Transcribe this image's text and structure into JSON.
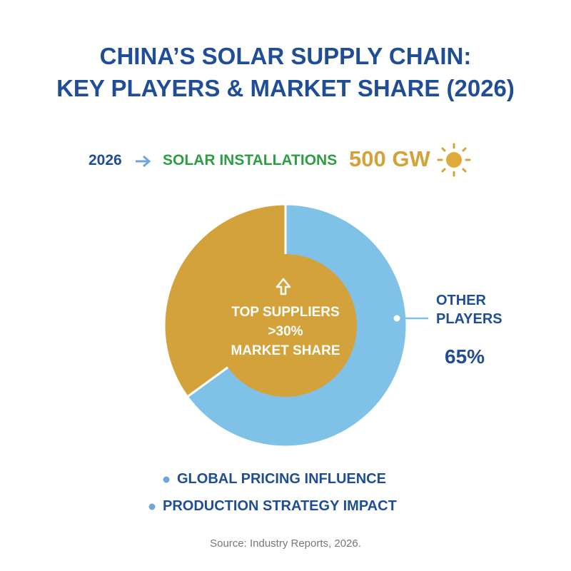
{
  "chart_data": {
    "type": "pie",
    "title": [
      "CHINA’S SOLAR SUPPLY CHAIN:",
      "KEY PLAYERS & MARKET SHARE (2026)"
    ],
    "headline": {
      "year": "2026",
      "label": "SOLAR INSTALLATIONS",
      "value": "500 GW"
    },
    "categories": [
      null,
      "OTHER PLAYERS"
    ],
    "values": [
      35,
      65
    ],
    "value_labels": [
      null,
      "65%"
    ],
    "colors": [
      "#d4a23a",
      "#80c1e7"
    ],
    "center_text": [
      "TOP SUPPLIERS",
      ">30%",
      "MARKET SHARE"
    ],
    "bullets": [
      "GLOBAL PRICING INFLUENCE",
      "PRODUCTION STRATEGY IMPACT"
    ],
    "source": "Source: Industry Reports, 2026."
  }
}
